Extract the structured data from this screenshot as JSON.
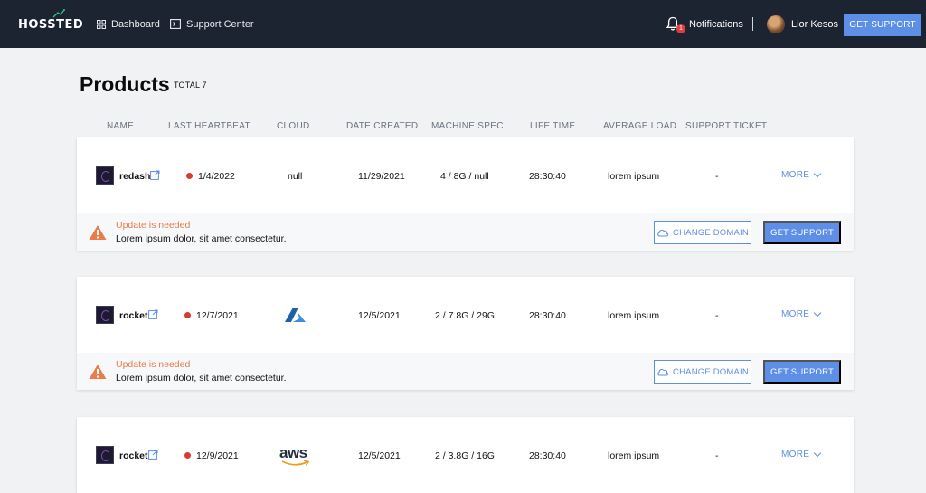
{
  "brand": {
    "logo_text": "HOSSTED"
  },
  "nav": {
    "dashboard_label": "Dashboard",
    "support_center_label": "Support Center",
    "notifications_label": "Notifications",
    "notifications_count": "1",
    "user_name": "Lior Kesos",
    "get_support_label": "GET SUPPORT"
  },
  "page": {
    "title": "Products",
    "total_label": "TOTAL 7"
  },
  "columns": [
    "NAME",
    "LAST HEARTBEAT",
    "CLOUD",
    "DATE CREATED",
    "MACHINE SPEC",
    "LIFE TIME",
    "AVERAGE LOAD",
    "SUPPORT TICKET"
  ],
  "products": [
    {
      "name": "redash",
      "last_heartbeat": "1/4/2022",
      "cloud": "null",
      "cloud_icon": "",
      "date_created": "11/29/2021",
      "machine_spec": "4 / 8G / null",
      "life_time": "28:30:40",
      "average_load": "lorem ipsum",
      "support_ticket": "-",
      "more_label": "MORE",
      "warning": {
        "title": "Update is needed",
        "text": "Lorem ipsum dolor, sit amet consectetur.",
        "change_domain_label": "CHANGE DOMAIN",
        "get_support_label": "GET SUPPORT"
      }
    },
    {
      "name": "rocket",
      "last_heartbeat": "12/7/2021",
      "cloud": "",
      "cloud_icon": "azure-icon",
      "date_created": "12/5/2021",
      "machine_spec": "2 / 7.8G / 29G",
      "life_time": "28:30:40",
      "average_load": "lorem ipsum",
      "support_ticket": "-",
      "more_label": "MORE",
      "warning": {
        "title": "Update is needed",
        "text": "Lorem ipsum dolor, sit amet consectetur.",
        "change_domain_label": "CHANGE DOMAIN",
        "get_support_label": "GET SUPPORT"
      }
    },
    {
      "name": "rocket",
      "last_heartbeat": "12/9/2021",
      "cloud": "aws",
      "cloud_icon": "aws-icon",
      "date_created": "12/5/2021",
      "machine_spec": "2 / 3.8G / 16G",
      "life_time": "28:30:40",
      "average_load": "lorem ipsum",
      "support_ticket": "-",
      "more_label": "MORE"
    }
  ],
  "colors": {
    "nav_bg": "#1c2431",
    "accent": "#5d8fe6",
    "warning": "#e97c48",
    "heartbeat_dot": "#d63c2f",
    "logo_green": "#2cc38a"
  }
}
